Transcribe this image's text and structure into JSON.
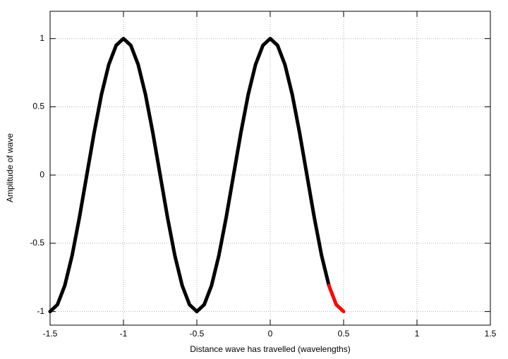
{
  "chart_data": {
    "type": "line",
    "xlabel": "Distance wave has travelled (wavelengths)",
    "ylabel": "Amplitude of wave",
    "x": [
      -1.5,
      -1.45,
      -1.4,
      -1.35,
      -1.3,
      -1.25,
      -1.2,
      -1.15,
      -1.1,
      -1.05,
      -1,
      -0.95,
      -0.9,
      -0.85,
      -0.8,
      -0.75,
      -0.7,
      -0.65,
      -0.6,
      -0.55,
      -0.5,
      -0.45,
      -0.4,
      -0.35,
      -0.3,
      -0.25,
      -0.2,
      -0.15,
      -0.1,
      -0.05,
      0,
      0.05,
      0.1,
      0.15,
      0.2,
      0.25,
      0.3,
      0.35,
      0.4,
      0.45,
      0.5
    ],
    "series": [
      {
        "color": "#000000",
        "values": [
          -1,
          -0.95,
          -0.81,
          -0.59,
          -0.31,
          0,
          0.31,
          0.59,
          0.81,
          0.95,
          1,
          0.95,
          0.81,
          0.59,
          0.31,
          0,
          -0.31,
          -0.59,
          -0.81,
          -0.95,
          -1,
          -0.95,
          -0.81,
          -0.59,
          -0.31,
          0,
          0.31,
          0.59,
          0.81,
          0.95,
          1,
          0.95,
          0.81,
          0.59,
          0.31,
          0,
          -0.31,
          -0.59,
          -0.81,
          null,
          null
        ]
      },
      {
        "color": "#ff0000",
        "values": [
          null,
          null,
          null,
          null,
          null,
          null,
          null,
          null,
          null,
          null,
          null,
          null,
          null,
          null,
          null,
          null,
          null,
          null,
          null,
          null,
          null,
          null,
          null,
          null,
          null,
          null,
          null,
          null,
          null,
          null,
          null,
          null,
          null,
          null,
          null,
          null,
          null,
          null,
          -0.81,
          -0.95,
          -1
        ]
      }
    ],
    "xlim": [
      -1.5,
      1.5
    ],
    "xticks": [
      -1.5,
      -1,
      -0.5,
      0,
      0.5,
      1,
      1.5
    ],
    "ylim": [
      -1.1,
      1.2
    ],
    "yticks": [
      -1,
      -0.5,
      0,
      0.5,
      1
    ],
    "grid": true
  }
}
